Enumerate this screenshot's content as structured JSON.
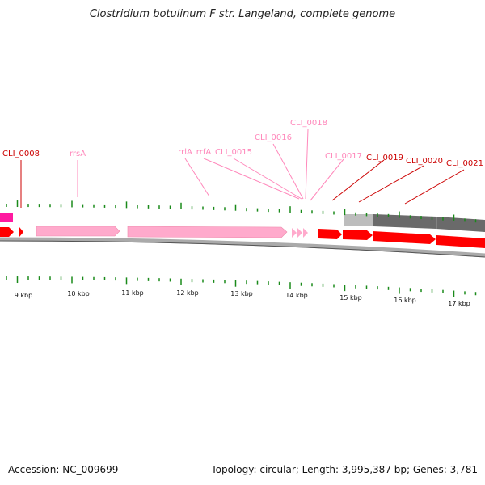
{
  "header": {
    "title": "Clostridium botulinum F str. Langeland, complete genome"
  },
  "footer": {
    "accession": "Accession: NC_009699",
    "summary": "Topology: circular; Length: 3,995,387 bp; Genes: 3,781"
  },
  "colors": {
    "cds": "#ff0000",
    "rna": "#ffaacc",
    "highlight": "#ff1aa0",
    "tick": "#1a8a1a",
    "backbone": "#777777",
    "gray_dark": "#666666",
    "gray_light": "#bbbbbb",
    "label_cds": "#cc0000",
    "label_rna": "#ff88bb"
  },
  "scale": {
    "ticks": [
      "9 kbp",
      "10 kbp",
      "11 kbp",
      "12 kbp",
      "13 kbp",
      "14 kbp",
      "15 kbp",
      "16 kbp",
      "17 kbp"
    ]
  },
  "feature_labels": [
    {
      "id": "lbl-cli-0008",
      "text": "CLI_0008",
      "kind": "cds"
    },
    {
      "id": "lbl-rrsa",
      "text": "rrsA",
      "kind": "rna"
    },
    {
      "id": "lbl-rrla",
      "text": "rrlA",
      "kind": "rna"
    },
    {
      "id": "lbl-rrfa",
      "text": "rrfA",
      "kind": "rna"
    },
    {
      "id": "lbl-cli-0015",
      "text": "CLI_0015",
      "kind": "rna"
    },
    {
      "id": "lbl-cli-0016",
      "text": "CLI_0016",
      "kind": "rna"
    },
    {
      "id": "lbl-cli-0018",
      "text": "CLI_0018",
      "kind": "rna"
    },
    {
      "id": "lbl-cli-0017",
      "text": "CLI_0017",
      "kind": "rna"
    },
    {
      "id": "lbl-cli-0019",
      "text": "CLI_0019",
      "kind": "cds"
    },
    {
      "id": "lbl-cli-0020",
      "text": "CLI_0020",
      "kind": "cds"
    },
    {
      "id": "lbl-cli-0021",
      "text": "CLI_0021",
      "kind": "cds"
    }
  ]
}
